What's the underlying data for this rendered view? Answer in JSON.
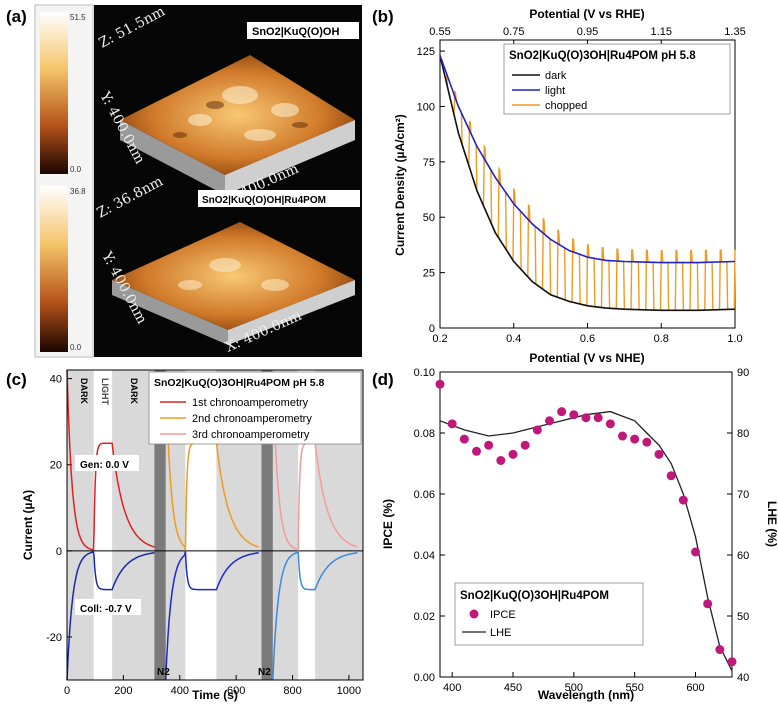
{
  "panels": {
    "a": {
      "label": "(a)",
      "scale_top": {
        "max": "51.5",
        "min": "0.0"
      },
      "scale_bottom": {
        "max": "36.8",
        "min": "0.0"
      },
      "top_image": {
        "title": "SnO2|KuQ(O)OH",
        "z": "Z: 51.5nm",
        "y": "Y: 400.0nm",
        "x": "X: 400.0nm"
      },
      "bottom_image": {
        "title": "SnO2|KuQ(O)OH|Ru4POM",
        "z": "Z: 36.8nm",
        "y": "Y: 400.0nm",
        "x": "X: 400.0nm"
      }
    }
  },
  "chart_data": [
    {
      "id": "b",
      "label": "(b)",
      "type": "line",
      "title": "SnO2|KuQ(O)3OH|Ru4POM pH 5.8",
      "xlabel": "Potential (V vs NHE)",
      "x2label": "Potential (V vs RHE)",
      "ylabel": "Current Density (µA/cm²)",
      "xlim": [
        0.2,
        1.0
      ],
      "ylim": [
        0,
        130
      ],
      "x2lim": [
        0.55,
        1.35
      ],
      "xticks": [
        "0.2",
        "0.4",
        "0.6",
        "0.8",
        "1.0"
      ],
      "xtick_values": [
        0.2,
        0.4,
        0.6,
        0.8,
        1.0
      ],
      "x2ticks": [
        "0.55",
        "0.75",
        "0.95",
        "1.15",
        "1.35"
      ],
      "yticks": [
        "0",
        "25",
        "50",
        "75",
        "100",
        "125"
      ],
      "ytick_values": [
        0,
        25,
        50,
        75,
        100,
        125
      ],
      "series": [
        {
          "name": "dark",
          "color": "#111111",
          "x": [
            0.2,
            0.25,
            0.3,
            0.35,
            0.4,
            0.45,
            0.5,
            0.55,
            0.6,
            0.65,
            0.7,
            0.8,
            0.9,
            1.0
          ],
          "y": [
            123,
            88,
            62,
            43,
            30,
            21,
            15,
            12,
            10,
            9,
            8.5,
            8,
            8,
            8.5
          ]
        },
        {
          "name": "light",
          "color": "#2222cc",
          "x": [
            0.2,
            0.25,
            0.3,
            0.35,
            0.4,
            0.45,
            0.5,
            0.55,
            0.6,
            0.65,
            0.7,
            0.8,
            0.9,
            1.0
          ],
          "y": [
            123,
            100,
            82,
            68,
            56,
            47,
            40,
            35,
            32,
            30.5,
            30,
            29.5,
            29.5,
            30
          ]
        },
        {
          "name": "chopped",
          "color": "#f09a20"
        }
      ]
    },
    {
      "id": "c",
      "label": "(c)",
      "type": "line",
      "title": "SnO2|KuQ(O)3OH|Ru4POM pH 5.8",
      "xlabel": "Time (s)",
      "ylabel": "Current (µA)",
      "xlim": [
        0,
        1050
      ],
      "ylim": [
        -30,
        42
      ],
      "xticks": [
        "0",
        "200",
        "400",
        "600",
        "800",
        "1000"
      ],
      "xtick_values": [
        0,
        200,
        400,
        600,
        800,
        1000
      ],
      "yticks": [
        "-20",
        "0",
        "20",
        "40"
      ],
      "ytick_values": [
        -20,
        0,
        20,
        40
      ],
      "region_labels": [
        "DARK",
        "LIGHT",
        "DARK"
      ],
      "n2_labels": [
        "N2",
        "N2"
      ],
      "gen_label": "Gen: 0.0 V",
      "coll_label": "Coll: -0.7 V",
      "series": [
        {
          "name": "1st chronoamperometry",
          "color": "#dd2222"
        },
        {
          "name": "2nd chronoamperometry",
          "color": "#f09a20"
        },
        {
          "name": "3rd chronoamperometry",
          "color": "#f59a9a"
        }
      ]
    },
    {
      "id": "d",
      "label": "(d)",
      "type": "scatter",
      "title": "SnO2|KuQ(O)3OH|Ru4POM",
      "xlabel": "Wavelength (nm)",
      "ylabel": "IPCE (%)",
      "y2label": "LHE (%)",
      "xlim": [
        390,
        630
      ],
      "ylim": [
        0,
        0.1
      ],
      "y2lim": [
        40,
        90
      ],
      "xticks": [
        "400",
        "450",
        "500",
        "550",
        "600"
      ],
      "xtick_values": [
        400,
        450,
        500,
        550,
        600
      ],
      "yticks": [
        "0.00",
        "0.02",
        "0.04",
        "0.06",
        "0.08",
        "0.10"
      ],
      "ytick_values": [
        0,
        0.02,
        0.04,
        0.06,
        0.08,
        0.1
      ],
      "y2ticks": [
        "40",
        "50",
        "60",
        "70",
        "80",
        "90"
      ],
      "y2tick_values": [
        40,
        50,
        60,
        70,
        80,
        90
      ],
      "series": [
        {
          "name": "IPCE",
          "color": "#c0187a",
          "x": [
            390,
            400,
            410,
            420,
            430,
            440,
            450,
            460,
            470,
            480,
            490,
            500,
            510,
            520,
            530,
            540,
            550,
            560,
            570,
            580,
            590,
            600,
            610,
            620,
            630
          ],
          "y": [
            0.096,
            0.083,
            0.078,
            0.074,
            0.076,
            0.071,
            0.073,
            0.076,
            0.081,
            0.084,
            0.087,
            0.086,
            0.085,
            0.085,
            0.083,
            0.079,
            0.078,
            0.077,
            0.073,
            0.066,
            0.058,
            0.041,
            0.024,
            0.009,
            0.005
          ]
        },
        {
          "name": "LHE",
          "color": "#222222",
          "x": [
            390,
            410,
            430,
            450,
            470,
            490,
            510,
            530,
            550,
            560,
            570,
            580,
            590,
            600,
            610,
            620,
            630
          ],
          "y": [
            82,
            80.5,
            79.5,
            80,
            81,
            82,
            83,
            83.5,
            82,
            80,
            78,
            75,
            70,
            63,
            53,
            45,
            41
          ]
        }
      ]
    }
  ]
}
